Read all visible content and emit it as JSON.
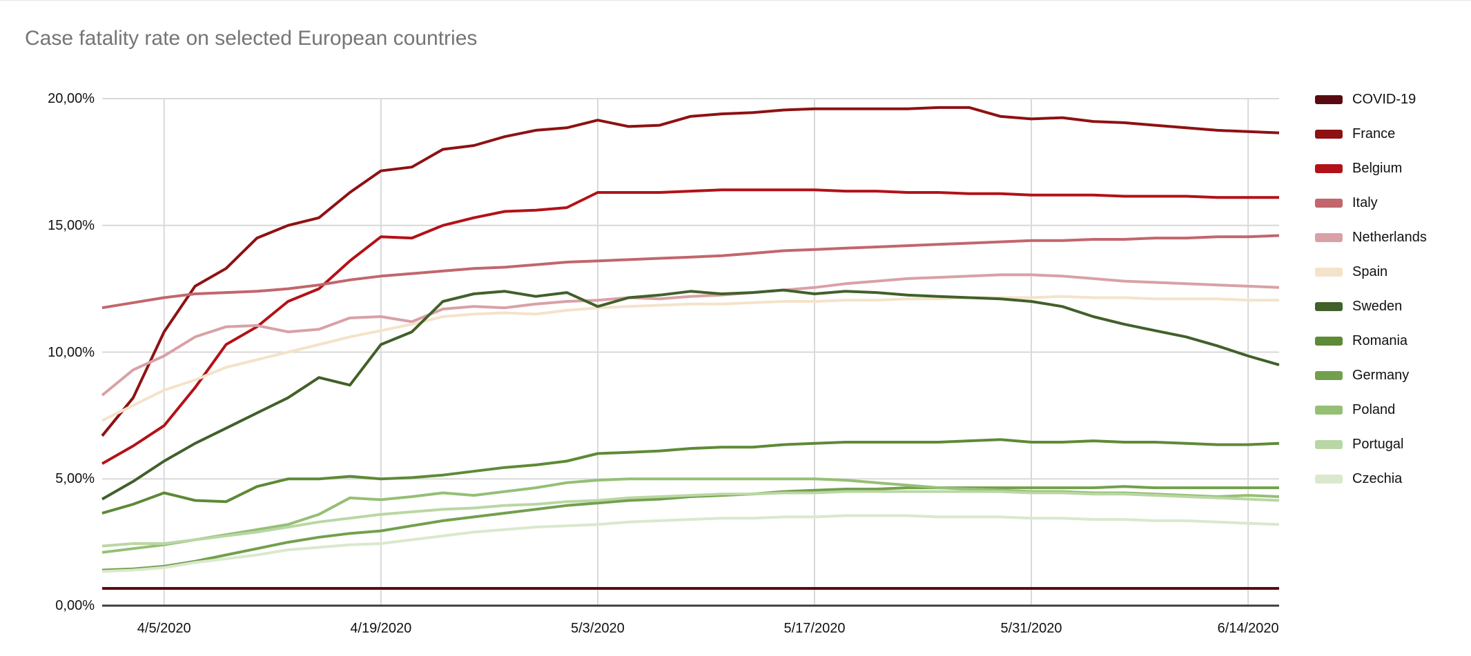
{
  "title": "Case fatality rate on selected European countries",
  "chart_data": {
    "type": "line",
    "title": "Case fatality rate on selected European countries",
    "xlabel": "",
    "ylabel": "",
    "grid": true,
    "legend_position": "right",
    "ylim": [
      0,
      20
    ],
    "y_ticks": [
      {
        "value": 0,
        "label": "0,00%"
      },
      {
        "value": 5,
        "label": "5,00%"
      },
      {
        "value": 10,
        "label": "10,00%"
      },
      {
        "value": 15,
        "label": "15,00%"
      },
      {
        "value": 20,
        "label": "20,00%"
      }
    ],
    "x_range_days": [
      0,
      76
    ],
    "x_ticks": [
      {
        "day": 4,
        "label": "4/5/2020"
      },
      {
        "day": 18,
        "label": "4/19/2020"
      },
      {
        "day": 32,
        "label": "5/3/2020"
      },
      {
        "day": 46,
        "label": "5/17/2020"
      },
      {
        "day": 60,
        "label": "5/31/2020"
      },
      {
        "day": 74,
        "label": "6/14/2020"
      }
    ],
    "sample_days": [
      0,
      2,
      4,
      6,
      8,
      10,
      12,
      14,
      16,
      18,
      20,
      22,
      24,
      26,
      28,
      30,
      32,
      34,
      36,
      38,
      40,
      42,
      44,
      46,
      48,
      50,
      52,
      54,
      56,
      58,
      60,
      62,
      64,
      66,
      68,
      70,
      72,
      74,
      76
    ],
    "unit": "percent",
    "series": [
      {
        "name": "COVID-19",
        "color": "#5a0b11",
        "values": [
          0.68,
          0.68,
          0.68,
          0.68,
          0.68,
          0.68,
          0.68,
          0.68,
          0.68,
          0.68,
          0.68,
          0.68,
          0.68,
          0.68,
          0.68,
          0.68,
          0.68,
          0.68,
          0.68,
          0.68,
          0.68,
          0.68,
          0.68,
          0.68,
          0.68,
          0.68,
          0.68,
          0.68,
          0.68,
          0.68,
          0.68,
          0.68,
          0.68,
          0.68,
          0.68,
          0.68,
          0.68,
          0.68,
          0.68
        ]
      },
      {
        "name": "France",
        "color": "#8e1113",
        "values": [
          6.7,
          8.2,
          10.8,
          12.6,
          13.3,
          14.5,
          15.0,
          15.3,
          16.3,
          17.15,
          17.3,
          18.0,
          18.15,
          18.5,
          18.75,
          18.85,
          19.15,
          18.9,
          18.95,
          19.3,
          19.4,
          19.45,
          19.55,
          19.6,
          19.6,
          19.6,
          19.6,
          19.65,
          19.65,
          19.3,
          19.2,
          19.25,
          19.1,
          19.05,
          18.95,
          18.85,
          18.75,
          18.7,
          18.65
        ]
      },
      {
        "name": "Belgium",
        "color": "#b31118",
        "values": [
          5.6,
          6.3,
          7.1,
          8.6,
          10.3,
          11.0,
          12.0,
          12.5,
          13.6,
          14.55,
          14.5,
          15.0,
          15.3,
          15.55,
          15.6,
          15.7,
          16.3,
          16.3,
          16.3,
          16.35,
          16.4,
          16.4,
          16.4,
          16.4,
          16.35,
          16.35,
          16.3,
          16.3,
          16.25,
          16.25,
          16.2,
          16.2,
          16.2,
          16.15,
          16.15,
          16.15,
          16.1,
          16.1,
          16.1
        ]
      },
      {
        "name": "Italy",
        "color": "#c2666c",
        "values": [
          11.75,
          11.95,
          12.15,
          12.3,
          12.35,
          12.4,
          12.5,
          12.65,
          12.85,
          13.0,
          13.1,
          13.2,
          13.3,
          13.35,
          13.45,
          13.55,
          13.6,
          13.65,
          13.7,
          13.75,
          13.8,
          13.9,
          14.0,
          14.05,
          14.1,
          14.15,
          14.2,
          14.25,
          14.3,
          14.35,
          14.4,
          14.4,
          14.45,
          14.45,
          14.5,
          14.5,
          14.55,
          14.55,
          14.6
        ]
      },
      {
        "name": "Netherlands",
        "color": "#d8a1a6",
        "values": [
          8.3,
          9.3,
          9.85,
          10.6,
          11.0,
          11.05,
          10.8,
          10.9,
          11.35,
          11.4,
          11.2,
          11.7,
          11.8,
          11.75,
          11.9,
          12.0,
          12.05,
          12.15,
          12.1,
          12.2,
          12.25,
          12.35,
          12.45,
          12.55,
          12.7,
          12.8,
          12.9,
          12.95,
          13.0,
          13.05,
          13.05,
          13.0,
          12.9,
          12.8,
          12.75,
          12.7,
          12.65,
          12.6,
          12.55
        ]
      },
      {
        "name": "Spain",
        "color": "#f4e3ca",
        "values": [
          7.3,
          7.9,
          8.5,
          8.9,
          9.4,
          9.7,
          10.0,
          10.3,
          10.6,
          10.85,
          11.1,
          11.4,
          11.5,
          11.55,
          11.5,
          11.65,
          11.75,
          11.8,
          11.85,
          11.9,
          11.9,
          11.95,
          12.0,
          12.0,
          12.05,
          12.05,
          12.1,
          12.1,
          12.15,
          12.15,
          12.15,
          12.2,
          12.15,
          12.15,
          12.1,
          12.1,
          12.1,
          12.05,
          12.05
        ]
      },
      {
        "name": "Sweden",
        "color": "#41602a",
        "values": [
          4.2,
          4.9,
          5.7,
          6.4,
          7.0,
          7.6,
          8.2,
          9.0,
          8.7,
          10.3,
          10.8,
          12.0,
          12.3,
          12.4,
          12.2,
          12.35,
          11.8,
          12.15,
          12.25,
          12.4,
          12.3,
          12.35,
          12.45,
          12.3,
          12.4,
          12.35,
          12.25,
          12.2,
          12.15,
          12.1,
          12.0,
          11.8,
          11.4,
          11.1,
          10.85,
          10.6,
          10.25,
          9.85,
          9.5
        ]
      },
      {
        "name": "Romania",
        "color": "#5d8a36",
        "values": [
          3.65,
          4.0,
          4.45,
          4.15,
          4.1,
          4.7,
          5.0,
          5.0,
          5.1,
          5.0,
          5.05,
          5.15,
          5.3,
          5.45,
          5.55,
          5.7,
          6.0,
          6.05,
          6.1,
          6.2,
          6.25,
          6.25,
          6.35,
          6.4,
          6.45,
          6.45,
          6.45,
          6.45,
          6.5,
          6.55,
          6.45,
          6.45,
          6.5,
          6.45,
          6.45,
          6.4,
          6.35,
          6.35,
          6.4
        ]
      },
      {
        "name": "Germany",
        "color": "#72a04d",
        "values": [
          1.4,
          1.45,
          1.55,
          1.75,
          2.0,
          2.25,
          2.5,
          2.7,
          2.85,
          2.95,
          3.15,
          3.35,
          3.5,
          3.65,
          3.8,
          3.95,
          4.05,
          4.15,
          4.2,
          4.3,
          4.35,
          4.4,
          4.5,
          4.55,
          4.6,
          4.6,
          4.65,
          4.65,
          4.65,
          4.65,
          4.65,
          4.65,
          4.65,
          4.7,
          4.65,
          4.65,
          4.65,
          4.65,
          4.65
        ]
      },
      {
        "name": "Poland",
        "color": "#95bf75",
        "values": [
          2.1,
          2.25,
          2.4,
          2.6,
          2.8,
          3.0,
          3.2,
          3.6,
          4.25,
          4.18,
          4.3,
          4.45,
          4.35,
          4.5,
          4.65,
          4.85,
          4.95,
          5.0,
          5.0,
          5.0,
          5.0,
          5.0,
          5.0,
          5.0,
          4.95,
          4.85,
          4.75,
          4.65,
          4.6,
          4.55,
          4.5,
          4.5,
          4.45,
          4.45,
          4.4,
          4.35,
          4.3,
          4.35,
          4.3
        ]
      },
      {
        "name": "Portugal",
        "color": "#b9d7a4",
        "values": [
          2.35,
          2.45,
          2.45,
          2.6,
          2.75,
          2.9,
          3.1,
          3.3,
          3.45,
          3.6,
          3.7,
          3.8,
          3.85,
          3.95,
          4.0,
          4.1,
          4.15,
          4.25,
          4.3,
          4.35,
          4.4,
          4.4,
          4.45,
          4.45,
          4.5,
          4.5,
          4.5,
          4.5,
          4.5,
          4.5,
          4.45,
          4.45,
          4.4,
          4.4,
          4.35,
          4.3,
          4.25,
          4.2,
          4.15
        ]
      },
      {
        "name": "Czechia",
        "color": "#dae8cd",
        "values": [
          1.35,
          1.4,
          1.5,
          1.7,
          1.85,
          2.0,
          2.2,
          2.3,
          2.4,
          2.45,
          2.6,
          2.75,
          2.9,
          3.0,
          3.1,
          3.15,
          3.2,
          3.3,
          3.35,
          3.4,
          3.45,
          3.45,
          3.5,
          3.5,
          3.55,
          3.55,
          3.55,
          3.5,
          3.5,
          3.5,
          3.45,
          3.45,
          3.4,
          3.4,
          3.35,
          3.35,
          3.3,
          3.25,
          3.2
        ]
      }
    ],
    "style": {
      "gridline_color": "#d9d9d9",
      "axis_line_color": "#3c3c3c",
      "title_color": "#757575",
      "label_color": "#111111",
      "line_width": 4
    }
  }
}
